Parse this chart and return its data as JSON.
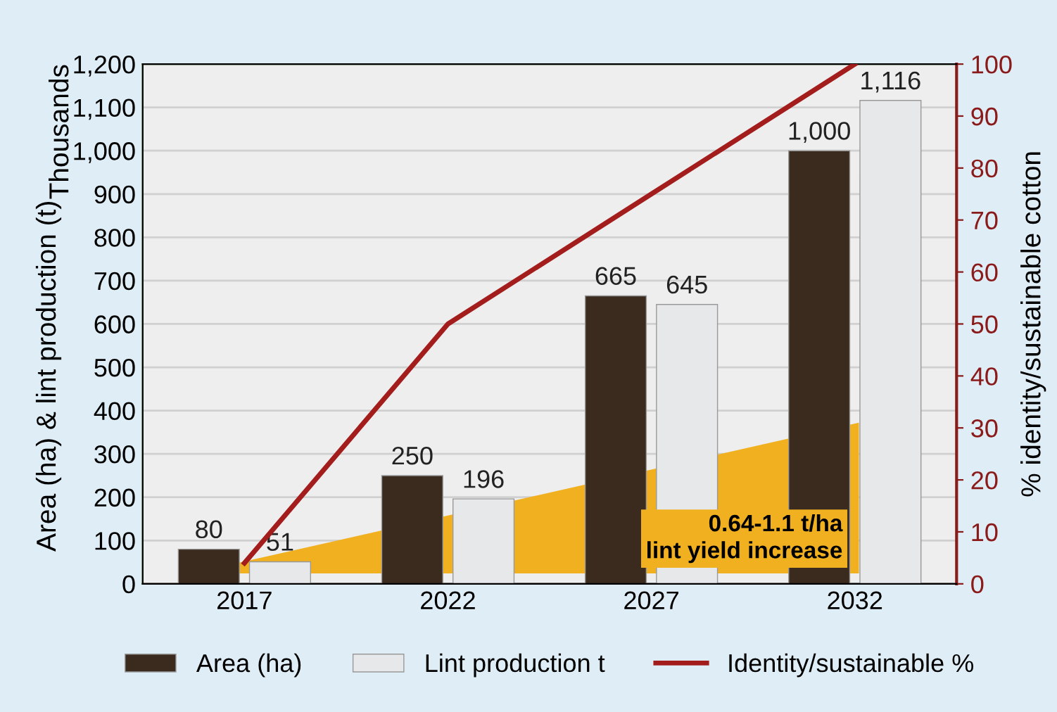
{
  "chart_data": {
    "type": "bar",
    "categories": [
      "2017",
      "2022",
      "2027",
      "2032"
    ],
    "series": [
      {
        "name": "Area (ha)",
        "color": "#3b2a1e",
        "values": [
          80,
          250,
          665,
          1000
        ]
      },
      {
        "name": "Lint production t",
        "color": "#e6e8ea",
        "values": [
          51,
          196,
          645,
          1116
        ]
      },
      {
        "name": "Identity/sustainable %",
        "type": "line",
        "axis": "y2",
        "color": "#a31d1d",
        "values": [
          4,
          50,
          75,
          100
        ]
      }
    ],
    "ylabel": "Area (ha) & lint production (t)",
    "y2label": "% identity/sustainable cotton",
    "ylim": [
      0,
      1200
    ],
    "yticks": [
      0,
      {
        "value": 100,
        "label": "100"
      },
      {
        "value": 200,
        "label": "200"
      },
      {
        "value": 300,
        "label": "300"
      },
      {
        "value": 400,
        "label": "400"
      },
      {
        "value": 500,
        "label": "500"
      },
      {
        "value": 600,
        "label": "600"
      },
      {
        "value": 700,
        "label": "700"
      },
      {
        "value": 800,
        "label": "800"
      },
      {
        "value": 900,
        "label": "900"
      },
      {
        "value": 1000,
        "label": "1,000"
      },
      {
        "value": 1100,
        "label": "1,100"
      },
      {
        "value": 1200,
        "label": "1,200"
      }
    ],
    "y2lim": [
      0,
      100
    ],
    "y2ticks": [
      0,
      10,
      20,
      30,
      40,
      50,
      60,
      70,
      80,
      90,
      100
    ],
    "value_labels": [
      [
        "80",
        "250",
        "665",
        "1,000"
      ],
      [
        "51",
        "196",
        "645",
        "1,116"
      ]
    ],
    "annotations": [
      "Thousands",
      "0.64-1.1 t/ha\nlint yield increase"
    ],
    "grid": "y",
    "legend": "bottom"
  }
}
